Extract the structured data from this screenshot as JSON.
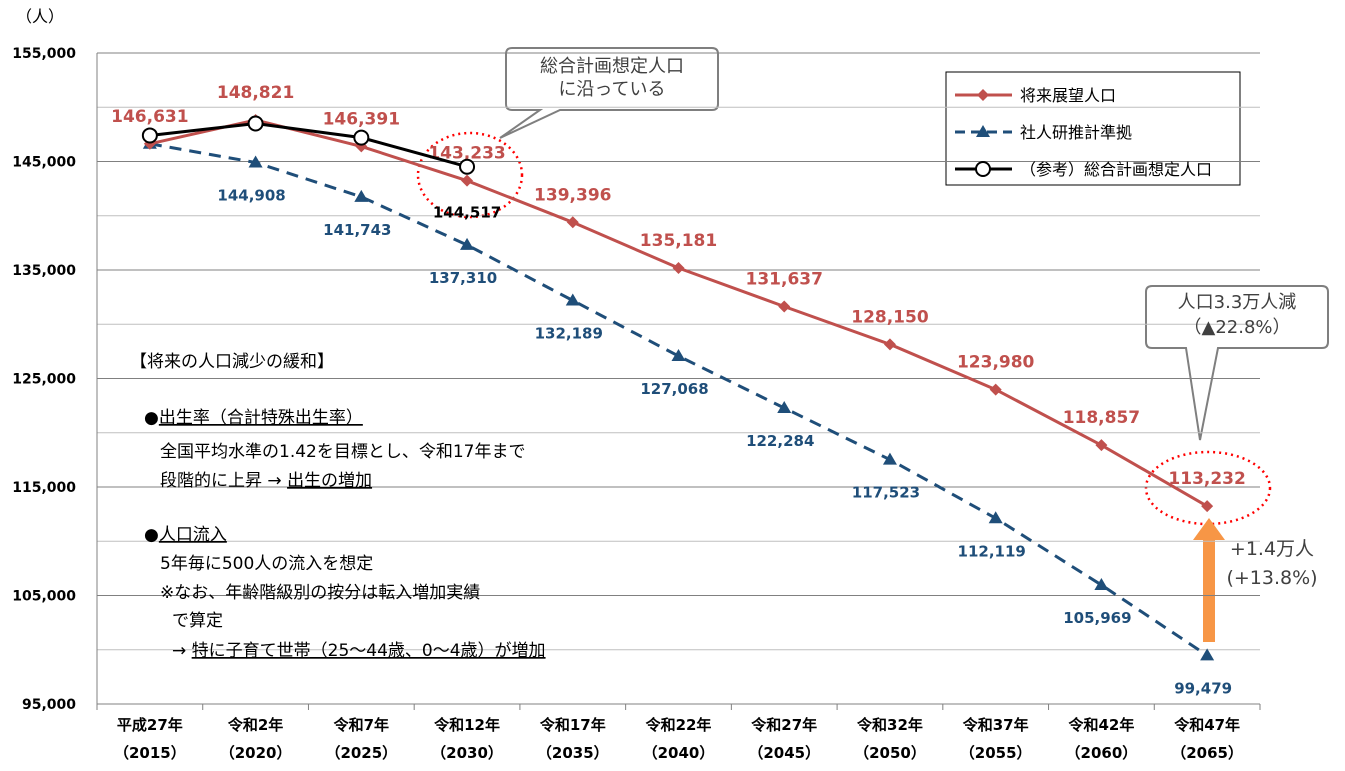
{
  "chart_data": {
    "type": "line",
    "y_unit": "（人）",
    "categories": [
      "平成27年",
      "令和2年",
      "令和7年",
      "令和12年",
      "令和17年",
      "令和22年",
      "令和27年",
      "令和32年",
      "令和37年",
      "令和42年",
      "令和47年"
    ],
    "category_years": [
      "（2015）",
      "（2020）",
      "（2025）",
      "（2030）",
      "（2035）",
      "（2040）",
      "（2045）",
      "（2050）",
      "（2055）",
      "（2060）",
      "（2065）"
    ],
    "ylim": [
      95000,
      155000
    ],
    "yticks": [
      {
        "value": 95000,
        "label": "95,000"
      },
      {
        "value": 105000,
        "label": "105,000"
      },
      {
        "value": 115000,
        "label": "115,000"
      },
      {
        "value": 125000,
        "label": "125,000"
      },
      {
        "value": 135000,
        "label": "135,000"
      },
      {
        "value": 145000,
        "label": "145,000"
      },
      {
        "value": 155000,
        "label": "155,000"
      }
    ],
    "minor_yticks": [
      100000,
      110000,
      120000,
      130000,
      140000,
      150000
    ],
    "grid": true,
    "legend": "upper right",
    "series": [
      {
        "name": "将来展望人口",
        "color": "#c0504d",
        "marker": "diamond",
        "dashed": false,
        "values": [
          146631,
          148821,
          146391,
          143233,
          139396,
          135181,
          131637,
          128150,
          123980,
          118857,
          113232
        ],
        "value_labels": [
          "146,631",
          "148,821",
          "146,391",
          "143,233",
          "139,396",
          "135,181",
          "131,637",
          "128,150",
          "123,980",
          "118,857",
          "113,232"
        ]
      },
      {
        "name": "社人研推計準拠",
        "color": "#1f4e79",
        "marker": "triangle",
        "dashed": true,
        "values": [
          146631,
          144908,
          141743,
          137310,
          132189,
          127068,
          122284,
          117523,
          112119,
          105969,
          99479
        ],
        "value_labels": [
          null,
          "144,908",
          "141,743",
          "137,310",
          "132,189",
          "127,068",
          "122,284",
          "117,523",
          "112,119",
          "105,969",
          "99,479"
        ]
      },
      {
        "name": "（参考）総合計画想定人口",
        "color": "#000000",
        "marker": "circle",
        "dashed": false,
        "values": [
          147400,
          148500,
          147200,
          144517,
          null,
          null,
          null,
          null,
          null,
          null,
          null
        ],
        "value_labels": [
          null,
          null,
          null,
          "144,517",
          null,
          null,
          null,
          null,
          null,
          null,
          null
        ]
      }
    ],
    "callouts": [
      [
        "総合計画想定人口",
        "に沿っている"
      ],
      [
        "人口3.3万人減",
        "（▲22.8%）"
      ],
      [
        "+1.4万人",
        "(+13.8%)"
      ]
    ],
    "notes": [
      [
        {
          "text": "【将来の人口減少の緩和】",
          "underline": false
        }
      ],
      [
        {
          "text": "●",
          "underline": false
        },
        {
          "text": "出生率（合計特殊出生率）",
          "underline": true
        }
      ],
      [
        {
          "text": "全国平均水準の1.42を目標とし、令和17年まで",
          "underline": false
        }
      ],
      [
        {
          "text": "段階的に上昇 →  ",
          "underline": false
        },
        {
          "text": "出生の増加",
          "underline": true
        }
      ],
      [
        {
          "text": "●",
          "underline": false
        },
        {
          "text": "人口流入",
          "underline": true
        }
      ],
      [
        {
          "text": "5年毎に500人の流入を想定",
          "underline": false
        }
      ],
      [
        {
          "text": "※なお、年齢階級別の按分は転入増加実績",
          "underline": false
        }
      ],
      [
        {
          "text": "で算定",
          "underline": false
        }
      ],
      [
        {
          "text": "→ ",
          "underline": false
        },
        {
          "text": "特に子育て世帯（25～44歳、0～4歳）が増加",
          "underline": true
        }
      ]
    ]
  }
}
